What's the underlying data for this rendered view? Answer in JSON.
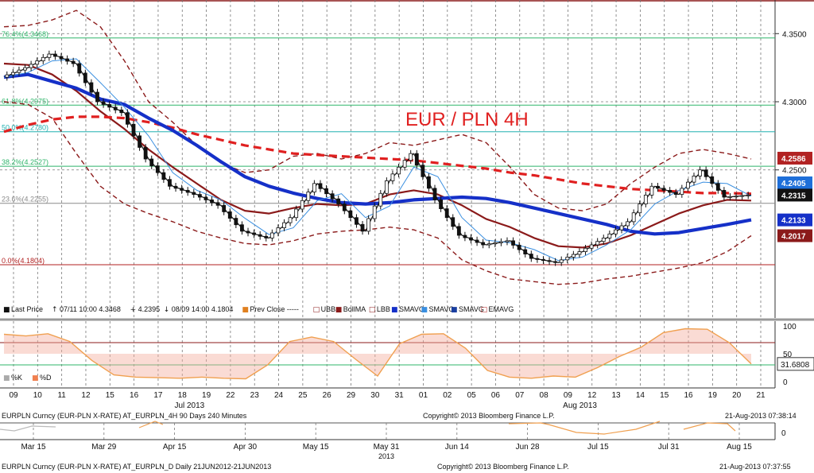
{
  "chart_data": [
    {
      "type": "line",
      "title": "EUR / PLN 4H",
      "ylim": [
        4.16,
        4.37
      ],
      "y_ticks": [
        "4.3500",
        "4.3000",
        "4.2500"
      ],
      "x_labels": [
        "09",
        "10",
        "11",
        "12",
        "15",
        "16",
        "17",
        "18",
        "19",
        "22",
        "23",
        "24",
        "25",
        "26",
        "29",
        "30",
        "31",
        "01",
        "02",
        "05",
        "06",
        "07",
        "08",
        "09",
        "12",
        "13",
        "14",
        "15",
        "16",
        "19",
        "20",
        "21"
      ],
      "month_labels": [
        "Jul 2013",
        "Aug 2013"
      ],
      "fib_levels": [
        {
          "label": "76.4%(4.3468)",
          "value": 4.3468
        },
        {
          "label": "61.8%(4.2975)",
          "value": 4.2975
        },
        {
          "label": "50.0%(4.2780)",
          "value": 4.278
        },
        {
          "label": "38.2%(4.2527)",
          "value": 4.2527
        },
        {
          "label": "23.6%(4.2255)",
          "value": 4.2255
        },
        {
          "label": "0.0%(4.1804)",
          "value": 4.1804
        }
      ],
      "price_badges": [
        {
          "value": "4.2586",
          "color": "#b22222"
        },
        {
          "value": "4.2405",
          "color": "#1e6fd9"
        },
        {
          "value": "4.2315",
          "color": "#111111"
        },
        {
          "value": "4.2133",
          "color": "#1530c8"
        },
        {
          "value": "4.2017",
          "color": "#8b1a1a"
        }
      ],
      "legend": [
        {
          "icon": "■",
          "text": "Last Price",
          "color": "#111111"
        },
        {
          "icon": "↑",
          "text": "07/11 10:00 4.3468",
          "color": "#111111"
        },
        {
          "icon": "+",
          "text": "4.2395",
          "color": "#111111"
        },
        {
          "icon": "↓",
          "text": "08/09 14:00 4.1804",
          "color": "#111111"
        },
        {
          "icon": "■",
          "text": "Prev Close -----",
          "color": "#e08020"
        },
        {
          "icon": "□",
          "text": "UBB",
          "color": "#8b1a1a"
        },
        {
          "icon": "■",
          "text": "BollMA",
          "color": "#8b1a1a"
        },
        {
          "icon": "□",
          "text": "LBB",
          "color": "#8b1a1a"
        },
        {
          "icon": "■",
          "text": "SMAVG",
          "color": "#1530c8"
        },
        {
          "icon": "■",
          "text": "SMAVG",
          "color": "#3a8fe0"
        },
        {
          "icon": "■",
          "text": "SMAVG",
          "color": "#1a3fa0"
        },
        {
          "icon": "□",
          "text": "EMAVG",
          "color": "#b22222"
        }
      ],
      "series": [
        {
          "name": "Last Price",
          "color": "#111111",
          "values": [
            4.318,
            4.325,
            4.335,
            4.328,
            4.3,
            4.292,
            4.258,
            4.238,
            4.232,
            4.224,
            4.205,
            4.2,
            4.215,
            4.24,
            4.225,
            4.205,
            4.242,
            4.262,
            4.228,
            4.202,
            4.195,
            4.198,
            4.185,
            4.182,
            4.19,
            4.2,
            4.212,
            4.238,
            4.232,
            4.25,
            4.23,
            4.2315
          ]
        },
        {
          "name": "SMAVG",
          "color": "#1530c8",
          "values": [
            4.318,
            4.32,
            4.315,
            4.31,
            4.302,
            4.298,
            4.288,
            4.279,
            4.268,
            4.256,
            4.245,
            4.238,
            4.233,
            4.229,
            4.226,
            4.225,
            4.226,
            4.228,
            4.229,
            4.23,
            4.229,
            4.226,
            4.222,
            4.218,
            4.214,
            4.21,
            4.205,
            4.203,
            4.204,
            4.207,
            4.21,
            4.2133
          ]
        },
        {
          "name": "EMAVG",
          "color": "#e02020",
          "values": [
            4.278,
            4.283,
            4.287,
            4.289,
            4.289,
            4.288,
            4.285,
            4.281,
            4.276,
            4.272,
            4.268,
            4.265,
            4.262,
            4.261,
            4.26,
            4.259,
            4.258,
            4.257,
            4.255,
            4.253,
            4.251,
            4.248,
            4.246,
            4.243,
            4.24,
            4.238,
            4.236,
            4.235,
            4.234,
            4.233,
            4.233,
            4.2325
          ]
        },
        {
          "name": "BollMA",
          "color": "#8b1a1a",
          "values": [
            4.328,
            4.327,
            4.32,
            4.308,
            4.293,
            4.28,
            4.265,
            4.252,
            4.24,
            4.228,
            4.22,
            4.218,
            4.222,
            4.225,
            4.224,
            4.225,
            4.232,
            4.235,
            4.232,
            4.224,
            4.214,
            4.208,
            4.2,
            4.194,
            4.193,
            4.196,
            4.202,
            4.21,
            4.218,
            4.224,
            4.228,
            4.2275
          ]
        },
        {
          "name": "UBB",
          "color": "#8b1a1a",
          "values": [
            4.355,
            4.356,
            4.36,
            4.367,
            4.355,
            4.33,
            4.3,
            4.285,
            4.268,
            4.255,
            4.248,
            4.25,
            4.26,
            4.262,
            4.258,
            4.262,
            4.27,
            4.268,
            4.272,
            4.276,
            4.27,
            4.252,
            4.232,
            4.222,
            4.22,
            4.225,
            4.24,
            4.252,
            4.262,
            4.265,
            4.262,
            4.258
          ]
        },
        {
          "name": "LBB",
          "color": "#8b1a1a",
          "values": [
            4.3,
            4.298,
            4.288,
            4.262,
            4.238,
            4.225,
            4.218,
            4.212,
            4.205,
            4.2,
            4.196,
            4.195,
            4.198,
            4.203,
            4.205,
            4.206,
            4.208,
            4.206,
            4.2,
            4.184,
            4.176,
            4.17,
            4.168,
            4.166,
            4.167,
            4.17,
            4.172,
            4.175,
            4.178,
            4.182,
            4.19,
            4.2017
          ]
        }
      ],
      "info_line": "EURPLN Curncy (EUR-PLN X-RATE) AT_EURPLN_4H 90 Days 240 Minutes",
      "copyright": "Copyright© 2013 Bloomberg Finance L.P.",
      "timestamp": "21-Aug-2013 07:38:14"
    },
    {
      "type": "line",
      "title": "",
      "ylim": [
        0,
        100
      ],
      "y_ticks": [
        "100",
        "50",
        "0"
      ],
      "value_badge": "31.6808",
      "legend": [
        {
          "icon": "■",
          "text": "%K",
          "color": "#aaaaaa"
        },
        {
          "icon": "■",
          "text": "%D",
          "color": "#f08050"
        }
      ],
      "series": [
        {
          "name": "%D",
          "color": "#f0a050",
          "values": [
            85,
            82,
            86,
            72,
            38,
            12,
            8,
            7,
            6,
            8,
            6,
            5,
            30,
            72,
            80,
            72,
            40,
            10,
            68,
            85,
            86,
            60,
            20,
            8,
            6,
            10,
            8,
            25,
            45,
            62,
            88,
            95,
            94,
            70,
            31.68
          ]
        }
      ]
    },
    {
      "type": "line",
      "title": "",
      "x_labels": [
        "Mar 15",
        "Mar 29",
        "Apr 15",
        "Apr 30",
        "May 15",
        "May 31",
        "Jun 14",
        "Jun 28",
        "Jul 15",
        "Jul 31",
        "Aug 15"
      ],
      "year_label": "2013",
      "y_ticks": [
        "0"
      ],
      "info_line": "EURPLN Curncy (EUR-PLN X-RATE) AT_EURPLN_D   Daily 21JUN2012-21JUN2013",
      "copyright": "Copyright© 2013 Bloomberg Finance L.P.",
      "timestamp": "21-Aug-2013 07:37:55"
    }
  ]
}
